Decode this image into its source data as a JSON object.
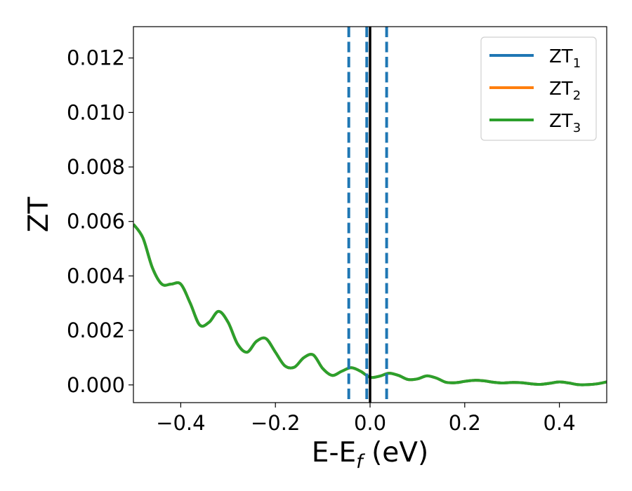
{
  "chart_data": {
    "type": "line",
    "xlabel": "E-E",
    "xlabel_sub": "f",
    "xlabel_unit": " (eV)",
    "ylabel": "ZT",
    "xlim": [
      -0.5,
      0.5
    ],
    "ylim": [
      -0.00065,
      0.01315
    ],
    "xticks": [
      -0.4,
      -0.2,
      0.0,
      0.2,
      0.4
    ],
    "xtick_labels": [
      "−0.4",
      "−0.2",
      "0.0",
      "0.2",
      "0.4"
    ],
    "yticks": [
      0.0,
      0.002,
      0.004,
      0.006,
      0.008,
      0.01,
      0.012
    ],
    "ytick_labels": [
      "0.000",
      "0.002",
      "0.004",
      "0.006",
      "0.008",
      "0.010",
      "0.012"
    ],
    "grid": false,
    "legend_position": "top-right",
    "series": [
      {
        "name": "ZT",
        "sub": "1",
        "color": "#1f77b4"
      },
      {
        "name": "ZT",
        "sub": "2",
        "color": "#ff7f0e"
      },
      {
        "name": "ZT",
        "sub": "3",
        "color": "#2ca02c"
      }
    ],
    "x": [
      -0.5,
      -0.48,
      -0.46,
      -0.44,
      -0.42,
      -0.4,
      -0.38,
      -0.36,
      -0.34,
      -0.32,
      -0.3,
      -0.28,
      -0.26,
      -0.24,
      -0.22,
      -0.2,
      -0.18,
      -0.16,
      -0.14,
      -0.12,
      -0.1,
      -0.08,
      -0.06,
      -0.04,
      -0.02,
      0.0,
      0.02,
      0.04,
      0.06,
      0.08,
      0.1,
      0.12,
      0.14,
      0.16,
      0.18,
      0.2,
      0.22,
      0.24,
      0.26,
      0.28,
      0.3,
      0.32,
      0.34,
      0.36,
      0.38,
      0.4,
      0.42,
      0.44,
      0.46,
      0.48,
      0.5
    ],
    "y": [
      0.0059,
      0.0054,
      0.0043,
      0.0037,
      0.0037,
      0.0037,
      0.003,
      0.0022,
      0.0023,
      0.0027,
      0.0023,
      0.0015,
      0.0012,
      0.0016,
      0.0017,
      0.0012,
      0.0007,
      0.00065,
      0.001,
      0.0011,
      0.0006,
      0.00035,
      0.0005,
      0.00063,
      0.0005,
      0.00028,
      0.00032,
      0.00043,
      0.00035,
      0.0002,
      0.00022,
      0.00033,
      0.00025,
      0.0001,
      8e-05,
      0.00013,
      0.00017,
      0.00015,
      0.0001,
      7e-05,
      9e-05,
      8e-05,
      4e-05,
      2e-05,
      6e-05,
      0.00011,
      7e-05,
      1e-05,
      1e-05,
      4e-05,
      0.00011
    ],
    "vlines": [
      {
        "x": -0.045,
        "style": "dashed",
        "color": "#1f77b4"
      },
      {
        "x": -0.007,
        "style": "dashed",
        "color": "#1f77b4"
      },
      {
        "x": 0.035,
        "style": "dashed",
        "color": "#1f77b4"
      },
      {
        "x": 0.0,
        "style": "solid",
        "color": "#000000"
      }
    ]
  }
}
